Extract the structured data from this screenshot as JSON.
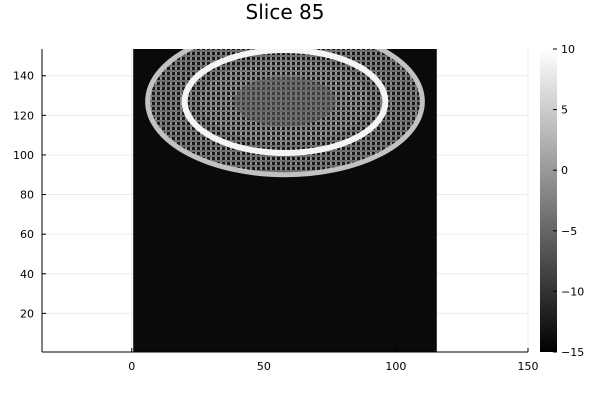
{
  "chart_data": {
    "type": "heatmap",
    "title": "Slice 85",
    "xlabel": "",
    "ylabel": "",
    "xlim": [
      -34,
      150
    ],
    "ylim": [
      0.5,
      153.5
    ],
    "x_ticks": [
      0,
      50,
      100,
      150
    ],
    "y_ticks": [
      20,
      40,
      60,
      80,
      100,
      120,
      140
    ],
    "image_extent": {
      "x": [
        0.5,
        115.5
      ],
      "y": [
        0.5,
        153.5
      ]
    },
    "grid": true,
    "colormap": "grays",
    "colorbar": {
      "range": [
        -15,
        10
      ],
      "ticks": [
        -15,
        -10,
        -5,
        0,
        5,
        10
      ],
      "tick_labels": [
        "−15",
        "−10",
        "−5",
        "0",
        "5",
        "10"
      ]
    },
    "background_value": -14,
    "structures": [
      {
        "name": "outer-ring",
        "center": [
          58,
          127
        ],
        "radii": [
          52,
          37
        ],
        "value": 4
      },
      {
        "name": "inner-ring",
        "center": [
          58,
          127
        ],
        "radii": [
          38,
          26
        ],
        "value": 9
      },
      {
        "name": "inner-core",
        "center": [
          58,
          127
        ],
        "radii": [
          32,
          21
        ],
        "value": -6
      }
    ]
  }
}
